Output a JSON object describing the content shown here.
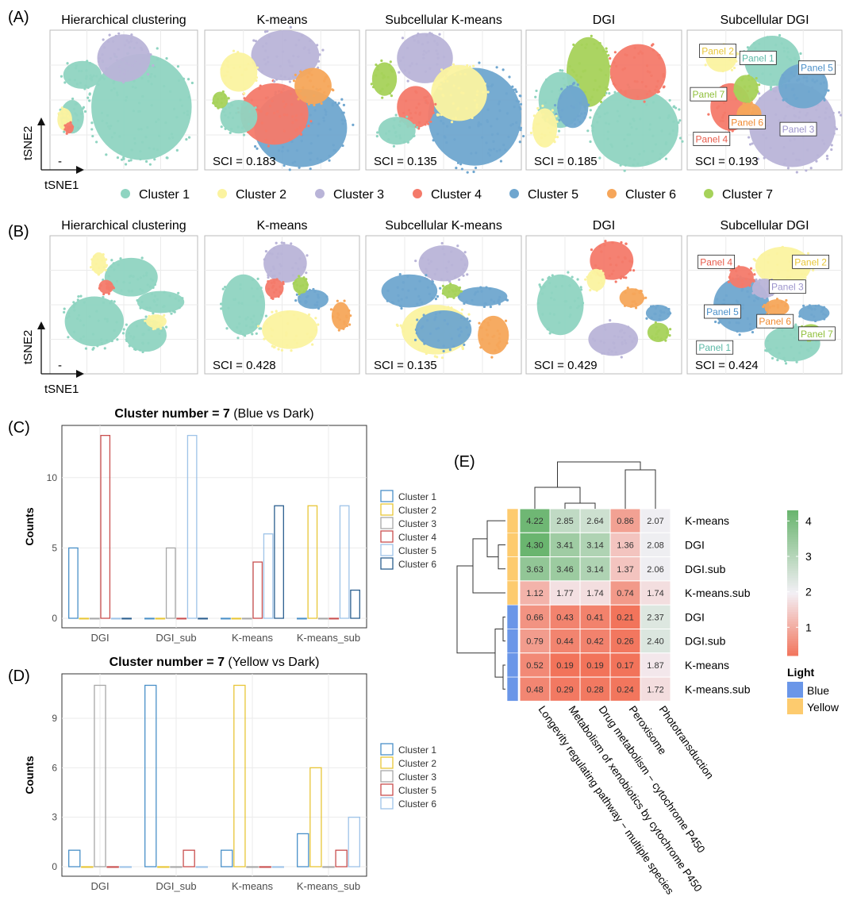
{
  "panel_letters": {
    "A": "(A)",
    "B": "(B)",
    "C": "(C)",
    "D": "(D)",
    "E": "(E)"
  },
  "colors": {
    "Cluster 1": "#8fd4c1",
    "Cluster 2": "#fbf3a0",
    "Cluster 3": "#b9b4d8",
    "Cluster 4": "#f47a6a",
    "Cluster 5": "#6fa6cf",
    "Cluster 6": "#f6a65a",
    "Cluster 7": "#a6d25a",
    "grid": "#ebebeb",
    "panel_border": "#bbbbbb"
  },
  "chart_data": [
    {
      "id": "A",
      "type": "scatter",
      "xlabel": "tSNE1",
      "ylabel": "tSNE2",
      "panels": [
        {
          "title": "Hierarchical clustering",
          "sci": "-"
        },
        {
          "title": "K-means",
          "sci": "SCI = 0.183"
        },
        {
          "title": "Subcellular K-means",
          "sci": "SCI = 0.135"
        },
        {
          "title": "DGI",
          "sci": "SCI = 0.185"
        },
        {
          "title": "Subcellular DGI",
          "sci": "SCI = 0.193",
          "labels": [
            "Panel 2",
            "Panel 1",
            "Panel 5",
            "Panel 7",
            "Panel 6",
            "Panel 3",
            "Panel 4"
          ]
        }
      ],
      "legend": [
        "Cluster 1",
        "Cluster 2",
        "Cluster 3",
        "Cluster 4",
        "Cluster 5",
        "Cluster 6",
        "Cluster 7"
      ]
    },
    {
      "id": "B",
      "type": "scatter",
      "xlabel": "tSNE1",
      "ylabel": "tSNE2",
      "panels": [
        {
          "title": "Hierarchical clustering",
          "sci": "-"
        },
        {
          "title": "K-means",
          "sci": "SCI = 0.428"
        },
        {
          "title": "Subcellular K-means",
          "sci": "SCI = 0.135"
        },
        {
          "title": "DGI",
          "sci": "SCI = 0.429"
        },
        {
          "title": "Subcellular DGI",
          "sci": "SCI = 0.424",
          "labels": [
            "Panel 4",
            "Panel 2",
            "Panel 3",
            "Panel 5",
            "Panel 6",
            "Panel 7",
            "Panel 1"
          ]
        }
      ]
    },
    {
      "id": "C",
      "type": "bar",
      "title_bold": "Cluster number = 7",
      "title_rest": " (Blue vs Dark)",
      "ylabel": "Counts",
      "categories": [
        "DGI",
        "DGI_sub",
        "K-means",
        "K-means_sub"
      ],
      "ylim": [
        0,
        13.6
      ],
      "yticks": [
        0,
        5,
        10
      ],
      "series": [
        {
          "name": "Cluster 1",
          "color": "#4a90c8",
          "values": [
            5,
            0,
            0,
            0
          ]
        },
        {
          "name": "Cluster 2",
          "color": "#e8c637",
          "values": [
            0,
            0,
            0,
            8
          ]
        },
        {
          "name": "Cluster 3",
          "color": "#a8a8a8",
          "values": [
            0,
            5,
            0,
            0
          ]
        },
        {
          "name": "Cluster 4",
          "color": "#c94f4f",
          "values": [
            13,
            0,
            4,
            0
          ]
        },
        {
          "name": "Cluster 5",
          "color": "#9ec3e8",
          "values": [
            0,
            13,
            6,
            8
          ]
        },
        {
          "name": "Cluster 6",
          "color": "#2b5f8f",
          "values": [
            0,
            0,
            8,
            2
          ]
        }
      ]
    },
    {
      "id": "D",
      "type": "bar",
      "title_bold": "Cluster number = 7",
      "title_rest": " (Yellow vs Dark)",
      "ylabel": "Counts",
      "categories": [
        "DGI",
        "DGI_sub",
        "K-means",
        "K-means_sub"
      ],
      "ylim": [
        0,
        11.6
      ],
      "yticks": [
        0,
        3,
        6,
        9
      ],
      "series": [
        {
          "name": "Cluster 1",
          "color": "#4a90c8",
          "values": [
            1,
            11,
            1,
            2
          ]
        },
        {
          "name": "Cluster 2",
          "color": "#e8c637",
          "values": [
            0,
            0,
            11,
            6
          ]
        },
        {
          "name": "Cluster 3",
          "color": "#a8a8a8",
          "values": [
            11,
            0,
            0,
            0
          ]
        },
        {
          "name": "Cluster 5",
          "color": "#c94f4f",
          "values": [
            0,
            1,
            0,
            1
          ]
        },
        {
          "name": "Cluster 6",
          "color": "#9ec3e8",
          "values": [
            0,
            0,
            0,
            3
          ]
        }
      ]
    },
    {
      "id": "E",
      "type": "heatmap",
      "rows": [
        "K-means",
        "DGI",
        "DGI.sub",
        "K-means.sub",
        "DGI",
        "DGI.sub",
        "K-means",
        "K-means.sub"
      ],
      "row_light": [
        "Yellow",
        "Yellow",
        "Yellow",
        "Yellow",
        "Blue",
        "Blue",
        "Blue",
        "Blue"
      ],
      "columns": [
        "Longevity regulating pathway − multiple species",
        "Metabolism of xenobiotics by cytochrome P450",
        "Drug metabolism − cytochrome P450",
        "Peroxisome",
        "Phototransduction"
      ],
      "values": [
        [
          4.22,
          2.85,
          2.64,
          0.86,
          2.07
        ],
        [
          4.3,
          3.41,
          3.14,
          1.36,
          2.08
        ],
        [
          3.63,
          3.46,
          3.14,
          1.37,
          2.06
        ],
        [
          1.12,
          1.77,
          1.74,
          0.74,
          1.74
        ],
        [
          0.66,
          0.43,
          0.41,
          0.21,
          2.37
        ],
        [
          0.79,
          0.44,
          0.42,
          0.26,
          2.4
        ],
        [
          0.52,
          0.19,
          0.19,
          0.17,
          1.87
        ],
        [
          0.48,
          0.29,
          0.28,
          0.24,
          1.72
        ]
      ],
      "value_labels": [
        [
          "4.22",
          "2.85",
          "2.64",
          "0.86",
          "2.07"
        ],
        [
          "4.30",
          "3.41",
          "3.14",
          "1.36",
          "2.08"
        ],
        [
          "3.63",
          "3.46",
          "3.14",
          "1.37",
          "2.06"
        ],
        [
          "1.12",
          "1.77",
          "1.74",
          "0.74",
          "1.74"
        ],
        [
          "0.66",
          "0.43",
          "0.41",
          "0.21",
          "2.37"
        ],
        [
          "0.79",
          "0.44",
          "0.42",
          "0.26",
          "2.40"
        ],
        [
          "0.52",
          "0.19",
          "0.19",
          "0.17",
          "1.87"
        ],
        [
          "0.48",
          "0.29",
          "0.28",
          "0.24",
          "1.72"
        ]
      ],
      "colorbar_ticks": [
        4,
        3,
        2,
        1
      ],
      "color_low": "#f2735a",
      "color_mid": "#f3f0f6",
      "color_high": "#6ab56f",
      "light_legend_title": "Light",
      "light_legend": [
        {
          "name": "Blue",
          "color": "#6a96e8"
        },
        {
          "name": "Yellow",
          "color": "#fdcb6e"
        }
      ]
    }
  ]
}
